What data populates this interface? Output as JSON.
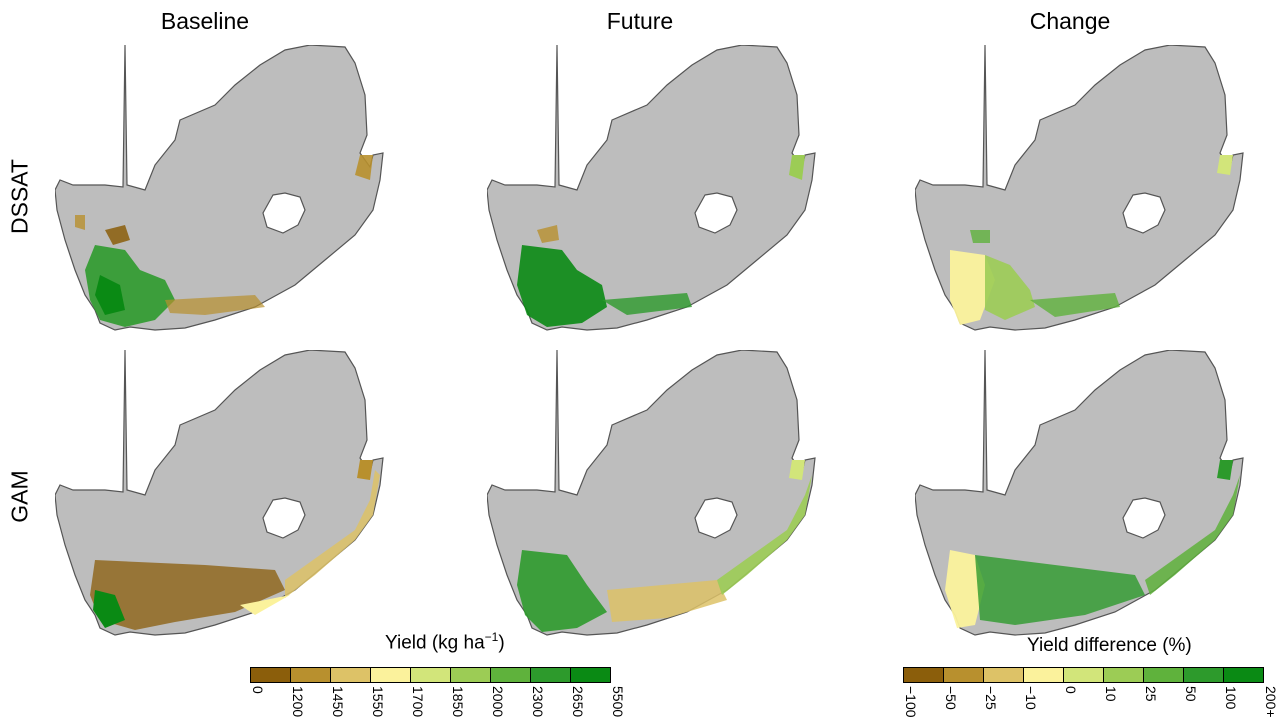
{
  "columns": [
    "Baseline",
    "Future",
    "Change"
  ],
  "rows": [
    "DSSAT",
    "GAM"
  ],
  "legends": {
    "yield": {
      "title": "Yield (kg ha",
      "title_sup": "−1",
      "title_end": ")",
      "colors": [
        "#8b5e0b",
        "#b8902e",
        "#ddc267",
        "#fbf29c",
        "#d2e57a",
        "#9ccc55",
        "#5fb23c",
        "#2d9a2c",
        "#0a8a14"
      ],
      "ticks": [
        "0",
        "1200",
        "1450",
        "1550",
        "1700",
        "1850",
        "2000",
        "2300",
        "2650",
        "5500"
      ]
    },
    "difference": {
      "title": "Yield difference (%)",
      "colors": [
        "#8b5e0b",
        "#b8902e",
        "#ddc267",
        "#fbf29c",
        "#d2e57a",
        "#9ccc55",
        "#5fb23c",
        "#2d9a2c",
        "#0a8a14"
      ],
      "ticks": [
        "−100",
        "−50",
        "−25",
        "−10",
        "0",
        "10",
        "25",
        "50",
        "100",
        "200+"
      ]
    }
  },
  "colors": {
    "land": "#bdbdbd",
    "border": "#555555"
  }
}
